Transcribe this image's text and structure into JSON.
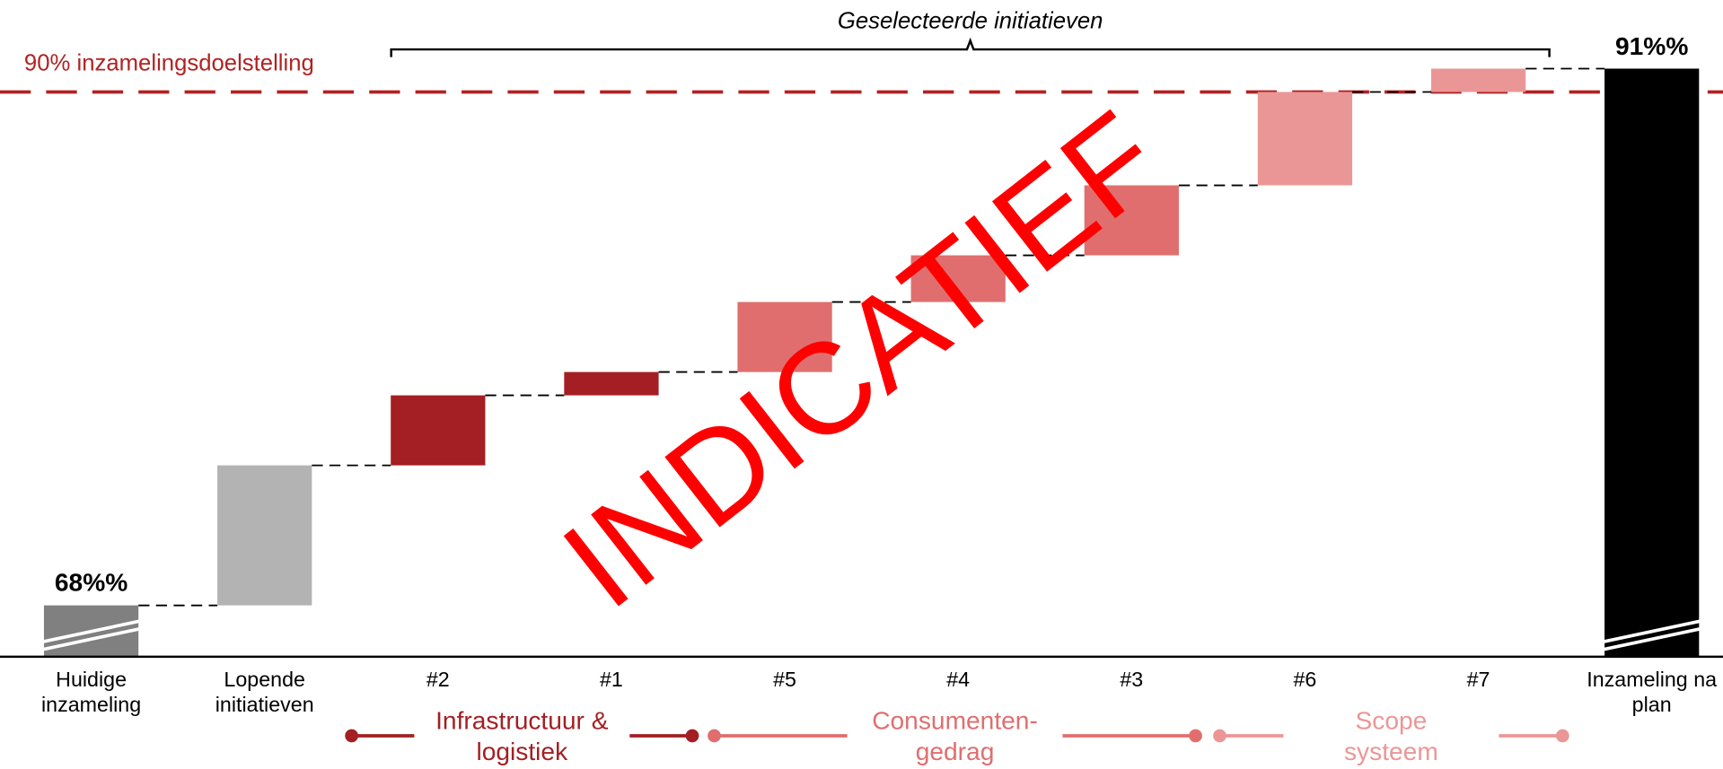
{
  "chart_data": {
    "type": "waterfall",
    "title": "Geselecteerde initiatieven",
    "annotation": "INDICATIEF",
    "categories": [
      "Huidige inzameling",
      "Lopende initiatieven",
      "#2",
      "#1",
      "#5",
      "#4",
      "#3",
      "#6",
      "#7",
      "Inzameling na plan"
    ],
    "values": [
      68,
      6,
      3,
      1,
      3,
      2,
      3,
      4,
      1,
      91
    ],
    "value_labels": [
      "68%%",
      null,
      null,
      null,
      null,
      null,
      null,
      null,
      null,
      "91%%"
    ],
    "colors": [
      "#808080",
      "#b3b3b3",
      "#a31f23",
      "#a31f23",
      "#e06e6e",
      "#e06e6e",
      "#e06e6e",
      "#eb9696",
      "#eb9696",
      "#000000"
    ],
    "ylim": [
      65.8,
      93
    ],
    "target": {
      "value": 90,
      "label": "90% inzamelingsdoelstelling",
      "color": "#b22222"
    },
    "groups": [
      {
        "name": "Infrastructuur & logistiek",
        "color": "#a31f23"
      },
      {
        "name": "Consumenten-gedrag",
        "color": "#e06e6e"
      },
      {
        "name": "Scope systeem",
        "color": "#eb9696"
      }
    ]
  }
}
